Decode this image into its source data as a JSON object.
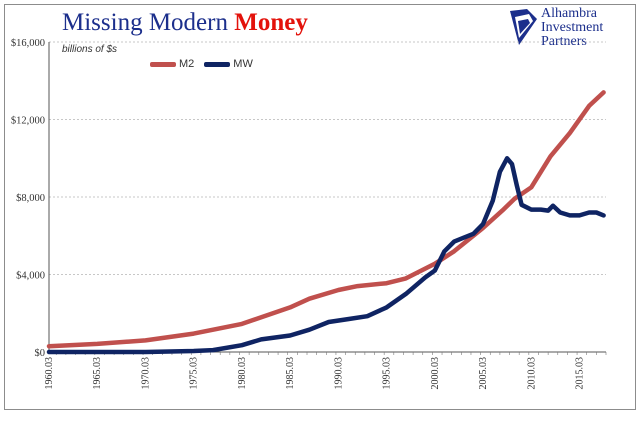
{
  "title": {
    "part1": "Missing Modern ",
    "part2": "Money"
  },
  "logo": {
    "lines": [
      "Alhambra",
      "Investment",
      "Partners"
    ],
    "icon": "alhambra-logo-icon"
  },
  "chart_data": {
    "type": "line",
    "title": "Missing Modern Money",
    "unit_label": "billions of $s",
    "legend_position": "top-left",
    "grid": true,
    "ylim": [
      0,
      16000
    ],
    "xlim": [
      1960.25,
      2018.0
    ],
    "yticks": [
      0,
      4000,
      8000,
      12000,
      16000
    ],
    "ytick_labels": [
      "$0",
      "$4,000",
      "$8,000",
      "$12,000",
      "$16,000"
    ],
    "xticks": [
      1960.25,
      1965.25,
      1970.25,
      1975.25,
      1980.25,
      1985.25,
      1990.25,
      1995.25,
      2000.25,
      2005.25,
      2010.25,
      2015.25
    ],
    "xtick_labels": [
      "1960.03",
      "1965.03",
      "1970.03",
      "1975.03",
      "1980.03",
      "1985.03",
      "1990.03",
      "1995.03",
      "2000.03",
      "2005.03",
      "2010.03",
      "2015.03"
    ],
    "series": [
      {
        "name": "M2",
        "color": "#c0504d",
        "points": [
          [
            1960.25,
            300
          ],
          [
            1965.25,
            420
          ],
          [
            1970.25,
            600
          ],
          [
            1975.25,
            950
          ],
          [
            1980.25,
            1450
          ],
          [
            1985.25,
            2300
          ],
          [
            1987.25,
            2750
          ],
          [
            1990.25,
            3200
          ],
          [
            1992.25,
            3400
          ],
          [
            1995.25,
            3550
          ],
          [
            1997.25,
            3800
          ],
          [
            2000.25,
            4550
          ],
          [
            2002.25,
            5200
          ],
          [
            2005.25,
            6400
          ],
          [
            2007.25,
            7300
          ],
          [
            2008.5,
            7900
          ],
          [
            2010.25,
            8500
          ],
          [
            2012.25,
            10100
          ],
          [
            2014.25,
            11300
          ],
          [
            2016.25,
            12700
          ],
          [
            2017.75,
            13400
          ]
        ]
      },
      {
        "name": "MW",
        "color": "#0f2463",
        "points": [
          [
            1960.25,
            0
          ],
          [
            1970.25,
            0
          ],
          [
            1975.25,
            50
          ],
          [
            1977.25,
            100
          ],
          [
            1980.25,
            350
          ],
          [
            1982.25,
            650
          ],
          [
            1985.25,
            850
          ],
          [
            1987.25,
            1150
          ],
          [
            1989.25,
            1550
          ],
          [
            1991.25,
            1700
          ],
          [
            1993.25,
            1850
          ],
          [
            1995.25,
            2300
          ],
          [
            1997.25,
            3000
          ],
          [
            1999.25,
            3850
          ],
          [
            2000.25,
            4200
          ],
          [
            2001.25,
            5200
          ],
          [
            2002.25,
            5700
          ],
          [
            2003.25,
            5900
          ],
          [
            2004.25,
            6100
          ],
          [
            2005.25,
            6600
          ],
          [
            2006.25,
            7800
          ],
          [
            2007.0,
            9300
          ],
          [
            2007.75,
            10000
          ],
          [
            2008.25,
            9700
          ],
          [
            2008.75,
            8600
          ],
          [
            2009.25,
            7600
          ],
          [
            2010.25,
            7350
          ],
          [
            2011.25,
            7350
          ],
          [
            2012.0,
            7300
          ],
          [
            2012.5,
            7550
          ],
          [
            2013.25,
            7200
          ],
          [
            2014.25,
            7050
          ],
          [
            2015.25,
            7050
          ],
          [
            2016.25,
            7200
          ],
          [
            2017.0,
            7200
          ],
          [
            2017.75,
            7050
          ]
        ]
      }
    ]
  }
}
